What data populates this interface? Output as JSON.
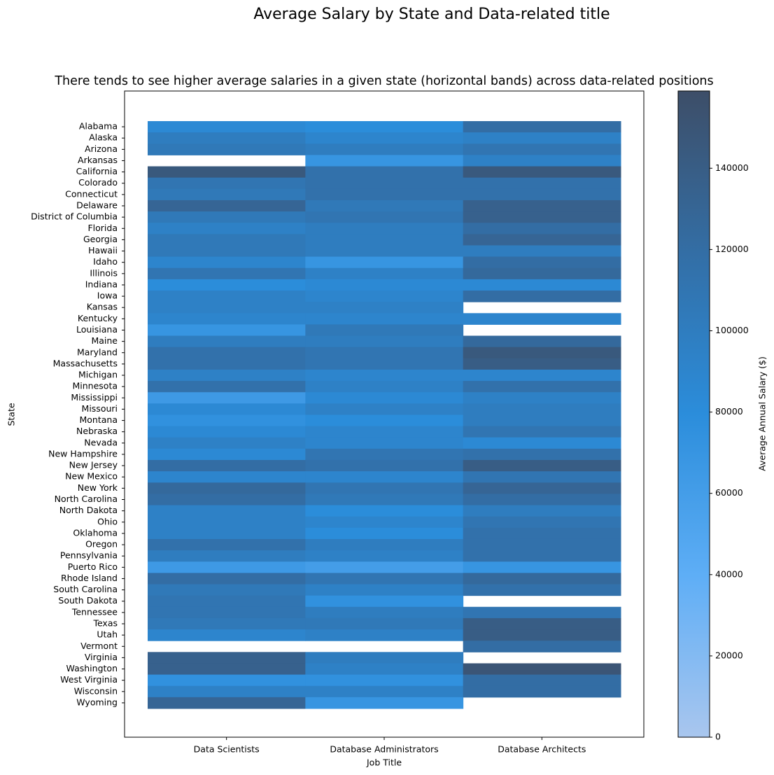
{
  "chart_data": {
    "type": "heatmap",
    "title": "Average Salary by State and Data-related title",
    "subtitle": "There tends to see higher average salaries in a given state (horizontal bands) across data-related positions",
    "x_label": "Job Title",
    "y_label": "State",
    "x_categories": [
      "Data Scientists",
      "Database Administrators",
      "Database Architects"
    ],
    "y_categories": [
      "Alabama",
      "Alaska",
      "Arizona",
      "Arkansas",
      "California",
      "Colorado",
      "Connecticut",
      "Delaware",
      "District of Columbia",
      "Florida",
      "Georgia",
      "Hawaii",
      "Idaho",
      "Illinois",
      "Indiana",
      "Iowa",
      "Kansas",
      "Kentucky",
      "Louisiana",
      "Maine",
      "Maryland",
      "Massachusetts",
      "Michigan",
      "Minnesota",
      "Mississippi",
      "Missouri",
      "Montana",
      "Nebraska",
      "Nevada",
      "New Hampshire",
      "New Jersey",
      "New Mexico",
      "New York",
      "North Carolina",
      "North Dakota",
      "Ohio",
      "Oklahoma",
      "Oregon",
      "Pennsylvania",
      "Puerto Rico",
      "Rhode Island",
      "South Carolina",
      "South Dakota",
      "Tennessee",
      "Texas",
      "Utah",
      "Vermont",
      "Virginia",
      "Washington",
      "West Virginia",
      "Wisconsin",
      "Wyoming"
    ],
    "values": [
      [
        85000,
        80000,
        120000
      ],
      [
        100000,
        90000,
        95000
      ],
      [
        105000,
        100000,
        110000
      ],
      [
        null,
        70000,
        95000
      ],
      [
        145000,
        115000,
        145000
      ],
      [
        110000,
        115000,
        115000
      ],
      [
        105000,
        115000,
        115000
      ],
      [
        130000,
        105000,
        135000
      ],
      [
        105000,
        110000,
        135000
      ],
      [
        95000,
        100000,
        120000
      ],
      [
        105000,
        100000,
        130000
      ],
      [
        105000,
        100000,
        100000
      ],
      [
        90000,
        70000,
        120000
      ],
      [
        110000,
        95000,
        125000
      ],
      [
        80000,
        85000,
        85000
      ],
      [
        95000,
        90000,
        120000
      ],
      [
        95000,
        95000,
        null
      ],
      [
        90000,
        90000,
        90000
      ],
      [
        70000,
        105000,
        null
      ],
      [
        100000,
        100000,
        125000
      ],
      [
        115000,
        110000,
        145000
      ],
      [
        115000,
        110000,
        140000
      ],
      [
        95000,
        90000,
        90000
      ],
      [
        115000,
        95000,
        115000
      ],
      [
        65000,
        85000,
        95000
      ],
      [
        85000,
        95000,
        100000
      ],
      [
        75000,
        80000,
        100000
      ],
      [
        85000,
        90000,
        110000
      ],
      [
        95000,
        90000,
        85000
      ],
      [
        85000,
        110000,
        115000
      ],
      [
        120000,
        115000,
        140000
      ],
      [
        90000,
        90000,
        110000
      ],
      [
        125000,
        110000,
        130000
      ],
      [
        120000,
        105000,
        120000
      ],
      [
        95000,
        80000,
        100000
      ],
      [
        95000,
        90000,
        110000
      ],
      [
        95000,
        80000,
        115000
      ],
      [
        115000,
        100000,
        115000
      ],
      [
        100000,
        95000,
        115000
      ],
      [
        65000,
        60000,
        70000
      ],
      [
        120000,
        110000,
        125000
      ],
      [
        105000,
        95000,
        115000
      ],
      [
        110000,
        75000,
        null
      ],
      [
        110000,
        100000,
        110000
      ],
      [
        105000,
        105000,
        140000
      ],
      [
        90000,
        95000,
        140000
      ],
      [
        null,
        null,
        120000
      ],
      [
        135000,
        100000,
        null
      ],
      [
        135000,
        95000,
        150000
      ],
      [
        75000,
        75000,
        120000
      ],
      [
        95000,
        95000,
        120000
      ],
      [
        130000,
        70000,
        null
      ]
    ],
    "colorscale": [
      "#a9c6ee",
      "#5eaef6",
      "#2b8ddb",
      "#336ea5",
      "#3d4e68"
    ],
    "colorbar": {
      "label": "Average Annual Salary ($)",
      "lim": [
        0,
        159000
      ],
      "ticks": [
        0,
        20000,
        40000,
        60000,
        80000,
        100000,
        120000,
        140000
      ]
    }
  }
}
